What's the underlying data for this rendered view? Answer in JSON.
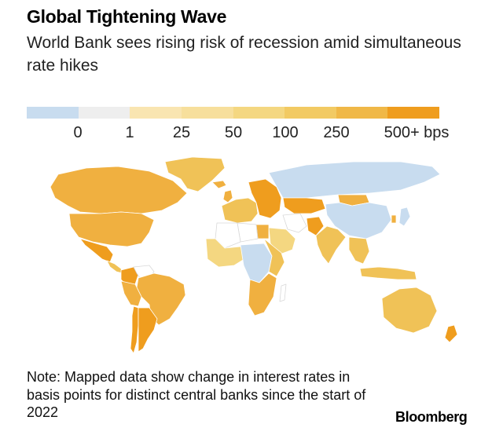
{
  "header": {
    "title": "Global Tightening Wave",
    "subtitle": "World Bank sees rising risk of recession amid simultaneous rate hikes"
  },
  "legend": {
    "colors": [
      "#c8dcef",
      "#eeeeee",
      "#f9e5b1",
      "#f7df9c",
      "#f4d781",
      "#f2ca63",
      "#f0b847",
      "#ef9d1e"
    ],
    "labels": [
      "0",
      "1",
      "25",
      "50",
      "100",
      "250",
      "500+ bps"
    ]
  },
  "map": {
    "categories": [
      "no-data",
      "0",
      "1-25",
      "25-50",
      "50-100",
      "100-250",
      "250-500",
      "500+"
    ],
    "colors": {
      "no-data": "#ffffff",
      "0": "#c8dcef",
      "1-25": "#eeeeee",
      "25-50": "#f9e5b1",
      "50-100": "#f4d781",
      "100-250": "#f0c257",
      "250-500": "#f0b040",
      "500+": "#ef9d1e"
    },
    "regions": [
      {
        "name": "Greenland",
        "category": "100-250"
      },
      {
        "name": "Canada",
        "category": "250-500"
      },
      {
        "name": "United States",
        "category": "250-500"
      },
      {
        "name": "Mexico",
        "category": "500+"
      },
      {
        "name": "Central America",
        "category": "100-250"
      },
      {
        "name": "Colombia",
        "category": "500+"
      },
      {
        "name": "Venezuela",
        "category": "no-data"
      },
      {
        "name": "Brazil",
        "category": "250-500"
      },
      {
        "name": "Peru",
        "category": "250-500"
      },
      {
        "name": "Chile",
        "category": "500+"
      },
      {
        "name": "Argentina",
        "category": "500+"
      },
      {
        "name": "Iceland",
        "category": "250-500"
      },
      {
        "name": "United Kingdom",
        "category": "250-500"
      },
      {
        "name": "Western Europe",
        "category": "100-250"
      },
      {
        "name": "Eastern Europe",
        "category": "500+"
      },
      {
        "name": "Russia",
        "category": "0"
      },
      {
        "name": "Kazakhstan",
        "category": "500+"
      },
      {
        "name": "China",
        "category": "0"
      },
      {
        "name": "Mongolia",
        "category": "250-500"
      },
      {
        "name": "India",
        "category": "100-250"
      },
      {
        "name": "Pakistan",
        "category": "500+"
      },
      {
        "name": "Iran",
        "category": "no-data"
      },
      {
        "name": "Saudi Arabia",
        "category": "50-100"
      },
      {
        "name": "Egypt",
        "category": "250-500"
      },
      {
        "name": "Libya",
        "category": "no-data"
      },
      {
        "name": "Algeria",
        "category": "no-data"
      },
      {
        "name": "West Africa",
        "category": "50-100"
      },
      {
        "name": "Central Africa",
        "category": "0"
      },
      {
        "name": "East Africa",
        "category": "100-250"
      },
      {
        "name": "Southern Africa",
        "category": "250-500"
      },
      {
        "name": "Madagascar",
        "category": "no-data"
      },
      {
        "name": "Southeast Asia",
        "category": "100-250"
      },
      {
        "name": "Japan",
        "category": "0"
      },
      {
        "name": "South Korea",
        "category": "250-500"
      },
      {
        "name": "Indonesia",
        "category": "100-250"
      },
      {
        "name": "Australia",
        "category": "100-250"
      },
      {
        "name": "New Zealand",
        "category": "500+"
      }
    ]
  },
  "note": "Note: Mapped data show change in interest rates in basis points for distinct central banks since the start of 2022",
  "brand": "Bloomberg"
}
